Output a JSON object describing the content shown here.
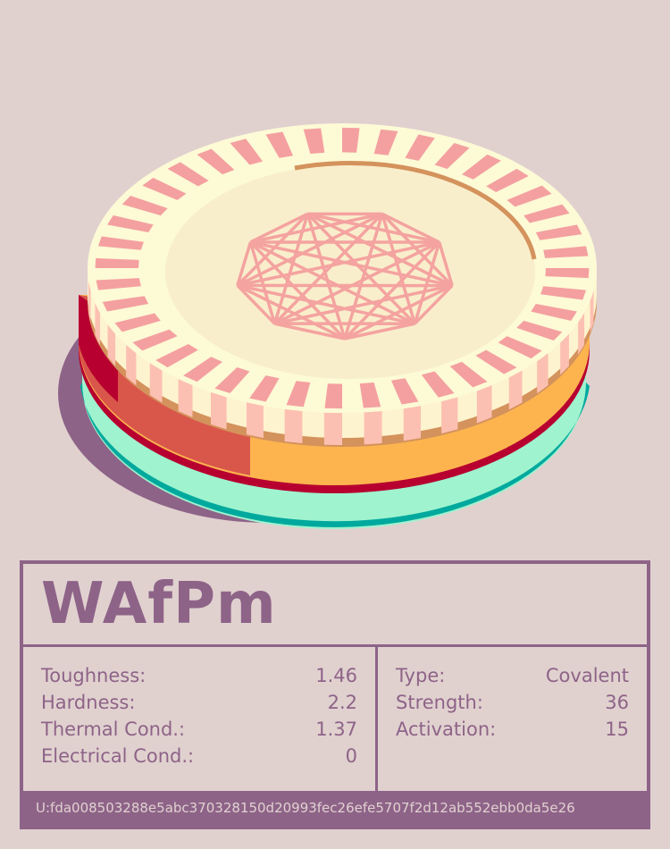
{
  "colors": {
    "background": "#e0d1cf",
    "accent": "#8e6388",
    "face": "#faefc9",
    "stripe": "#f4a0a0",
    "orange": "#fdb44f",
    "red": "#b7002f",
    "teal": "#00a99d",
    "mint": "#9ff3cf"
  },
  "coin": {
    "emblem": "nonagon-complete-graph-icon",
    "rim_stripes": 40
  },
  "card": {
    "title": "WAfPm",
    "left_stats": [
      {
        "label": "Toughness:",
        "value": "1.46"
      },
      {
        "label": "Hardness:",
        "value": "2.2"
      },
      {
        "label": "Thermal Cond.:",
        "value": "1.37"
      },
      {
        "label": "Electrical Cond.:",
        "value": "0"
      }
    ],
    "right_stats": [
      {
        "label": "Type:",
        "value": "Covalent"
      },
      {
        "label": "Strength:",
        "value": "36"
      },
      {
        "label": "Activation:",
        "value": "15"
      }
    ],
    "footer": "U:fda008503288e5abc370328150d20993fec26efe5707f2d12ab552ebb0da5e26"
  }
}
